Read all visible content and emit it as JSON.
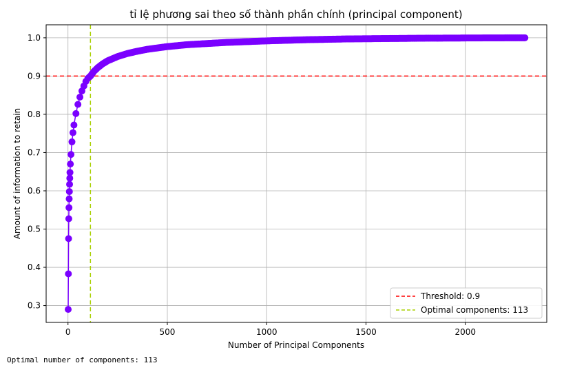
{
  "chart_data": {
    "type": "line",
    "title": "tỉ lệ phương sai theo số thành phần chính (principal component)",
    "xlabel": "Number of Principal Components",
    "ylabel": "Amount of information to retain",
    "xlim": [
      -110,
      2410
    ],
    "ylim": [
      0.256,
      1.034
    ],
    "xticks": [
      0,
      500,
      1000,
      1500,
      2000
    ],
    "yticks": [
      0.3,
      0.4,
      0.5,
      0.6,
      0.7,
      0.8,
      0.9,
      1.0
    ],
    "xtick_labels": [
      "0",
      "500",
      "1000",
      "1500",
      "2000"
    ],
    "ytick_labels": [
      "0.3",
      "0.4",
      "0.5",
      "0.6",
      "0.7",
      "0.8",
      "0.9",
      "1.0"
    ],
    "grid": true,
    "series": [
      {
        "kind": "cumulative-variance-curve",
        "color": "#7a00ff",
        "marker": "circle",
        "x": [
          1,
          2,
          3,
          4,
          5,
          6,
          7,
          8,
          9,
          10,
          12,
          15,
          20,
          25,
          30,
          40,
          50,
          60,
          70,
          80,
          90,
          100,
          113,
          130,
          150,
          175,
          200,
          250,
          300,
          350,
          400,
          500,
          600,
          700,
          800,
          900,
          1000,
          1200,
          1400,
          1600,
          1800,
          2000,
          2200,
          2300
        ],
        "y": [
          0.29,
          0.383,
          0.475,
          0.527,
          0.556,
          0.579,
          0.598,
          0.617,
          0.633,
          0.648,
          0.67,
          0.695,
          0.728,
          0.752,
          0.772,
          0.802,
          0.826,
          0.845,
          0.861,
          0.874,
          0.886,
          0.894,
          0.9,
          0.912,
          0.922,
          0.932,
          0.94,
          0.951,
          0.959,
          0.965,
          0.97,
          0.977,
          0.982,
          0.985,
          0.988,
          0.99,
          0.992,
          0.995,
          0.997,
          0.998,
          0.999,
          0.9995,
          0.9999,
          1.0
        ]
      }
    ],
    "threshold": {
      "value": 0.9,
      "label": "Threshold: 0.9",
      "color": "#ff0000"
    },
    "optimal": {
      "value": 113,
      "label": "Optimal components: 113",
      "color": "#a8d000"
    },
    "legend_position": "bottom-right"
  },
  "output_text": "Optimal number of components: 113"
}
